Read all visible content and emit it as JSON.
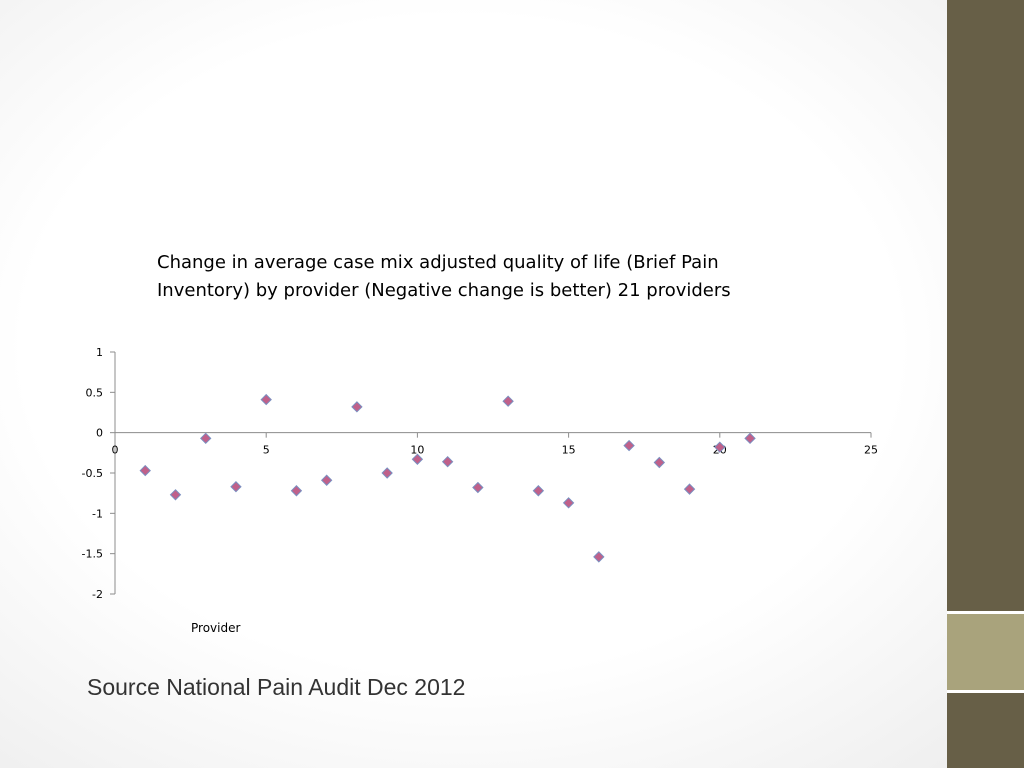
{
  "chart_data": {
    "type": "scatter",
    "title": "Change in average case mix adjusted quality of life (Brief Pain\nInventory)  by provider  (Negative change is better) 21 providers",
    "xlabel": "Provider",
    "ylabel": "",
    "xlim": [
      0,
      25
    ],
    "ylim": [
      -2,
      1
    ],
    "x_ticks": [
      "0",
      "5",
      "10",
      "15",
      "20",
      "25"
    ],
    "y_ticks": [
      "1",
      "0.5",
      "0",
      "-0.5",
      "-1",
      "-1.5",
      "-2"
    ],
    "grid": false,
    "marker": "diamond",
    "marker_color": "#c0608a",
    "marker_edge": "#7a8fc0",
    "points": [
      {
        "x": 1,
        "y": -0.47
      },
      {
        "x": 2,
        "y": -0.77
      },
      {
        "x": 3,
        "y": -0.07
      },
      {
        "x": 4,
        "y": -0.67
      },
      {
        "x": 5,
        "y": 0.41
      },
      {
        "x": 6,
        "y": -0.72
      },
      {
        "x": 7,
        "y": -0.59
      },
      {
        "x": 8,
        "y": 0.32
      },
      {
        "x": 9,
        "y": -0.5
      },
      {
        "x": 10,
        "y": -0.33
      },
      {
        "x": 11,
        "y": -0.36
      },
      {
        "x": 12,
        "y": -0.68
      },
      {
        "x": 13,
        "y": 0.39
      },
      {
        "x": 14,
        "y": -0.72
      },
      {
        "x": 15,
        "y": -0.87
      },
      {
        "x": 16,
        "y": -1.54
      },
      {
        "x": 17,
        "y": -0.16
      },
      {
        "x": 18,
        "y": -0.37
      },
      {
        "x": 19,
        "y": -0.7
      },
      {
        "x": 20,
        "y": -0.18
      },
      {
        "x": 21,
        "y": -0.07
      }
    ]
  },
  "footer": {
    "source": "Source National Pain Audit Dec 2012"
  },
  "theme": {
    "sidebar_color": "#675f47",
    "sidebar_accent": "#a9a37c"
  }
}
